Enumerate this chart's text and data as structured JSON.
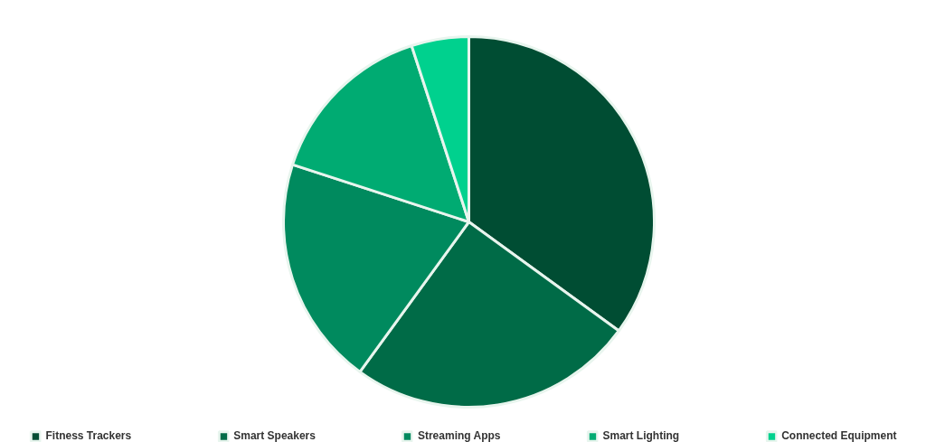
{
  "chart_data": {
    "type": "pie",
    "categories": [
      "Fitness Trackers",
      "Smart Speakers",
      "Streaming Apps",
      "Smart Lighting",
      "Connected Equipment"
    ],
    "values": [
      35,
      25,
      20,
      15,
      5
    ],
    "colors": [
      "#004d33",
      "#006b47",
      "#008a5e",
      "#00ab72",
      "#00d18e"
    ],
    "legend": "bottom"
  }
}
